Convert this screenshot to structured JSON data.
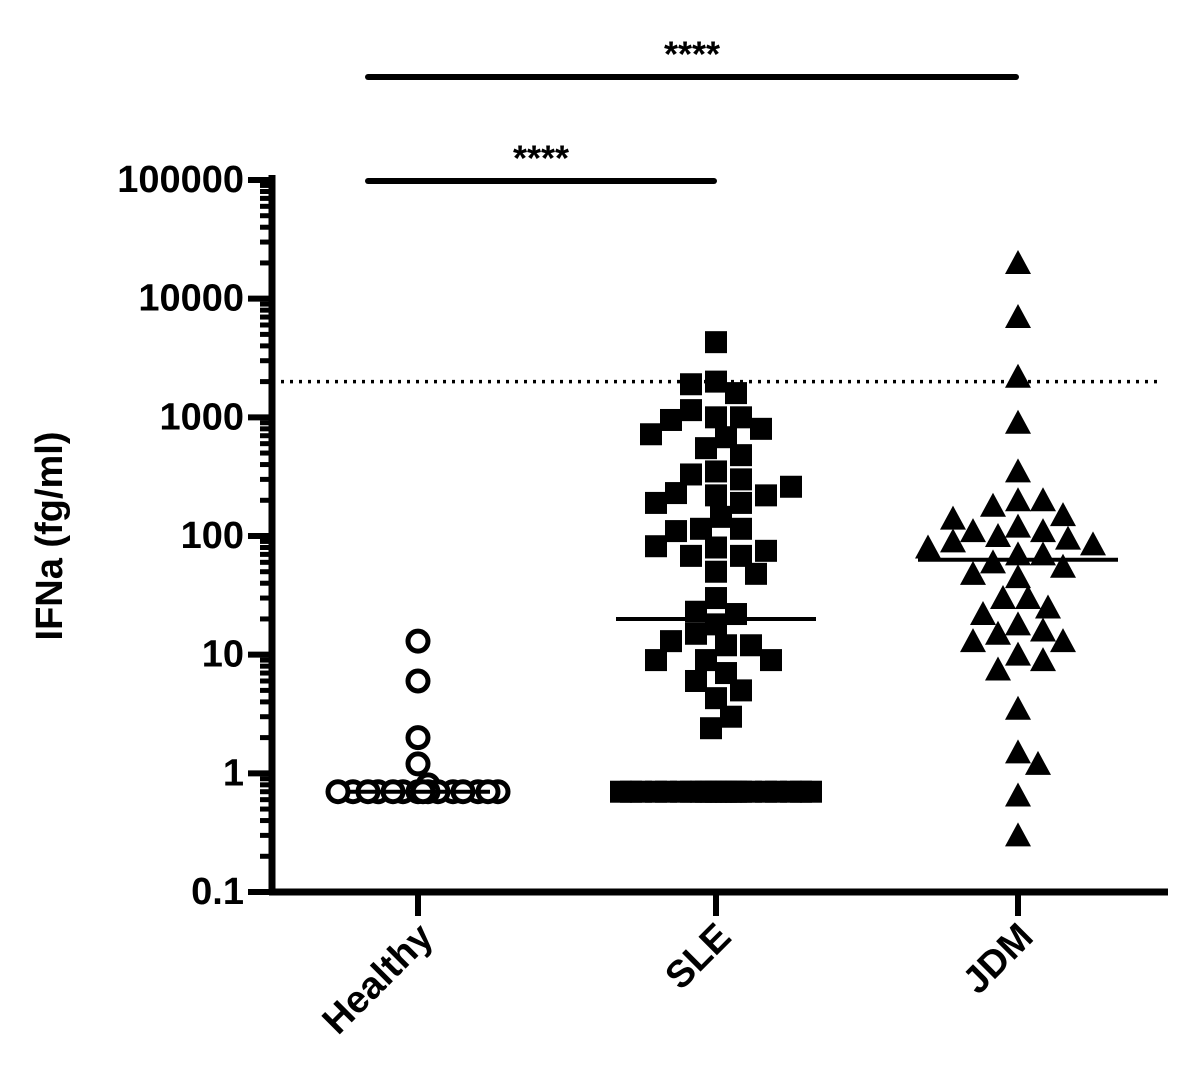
{
  "chart_data": {
    "type": "dotplot",
    "y_label": "IFNa (fg/ml)",
    "log_scale": true,
    "ylim": [
      0.1,
      100000
    ],
    "yticks": [
      0.1,
      1,
      10,
      100,
      1000,
      10000,
      100000
    ],
    "color": "#000000",
    "threshold": 2000,
    "categories": [
      "Healthy",
      "SLE",
      "JDM"
    ],
    "groups": [
      {
        "marker": "circle",
        "median": 0.7,
        "values": [
          1.2,
          13,
          6,
          2,
          0.8,
          0.7,
          0.7,
          0.7,
          0.7,
          0.7,
          0.7,
          0.7,
          0.7,
          0.7,
          0.7,
          0.7,
          0.7,
          0.7,
          0.7,
          0.7
        ]
      },
      {
        "marker": "square",
        "median": 20,
        "values": [
          4300,
          2000,
          1600,
          1900,
          1000,
          1000,
          1150,
          950,
          800,
          680,
          550,
          720,
          480,
          350,
          300,
          330,
          220,
          190,
          230,
          220,
          190,
          260,
          145,
          115,
          115,
          110,
          80,
          68,
          68,
          75,
          82,
          50,
          48,
          30,
          22,
          23,
          18,
          15,
          12,
          12,
          13,
          9,
          9,
          9,
          7,
          6,
          5,
          4.3,
          3,
          2.4,
          0.7,
          0.7,
          0.7,
          0.7,
          0.7,
          0.7,
          0.7,
          0.7,
          0.7,
          0.7,
          0.7,
          0.7,
          0.7,
          0.7,
          0.7,
          0.7,
          0.7,
          0.7,
          0.7,
          0.7,
          0.7,
          0.7
        ]
      },
      {
        "marker": "triangle",
        "median": 63,
        "values": [
          20000,
          7000,
          2200,
          900,
          350,
          200,
          200,
          180,
          150,
          120,
          110,
          100,
          110,
          140,
          95,
          90,
          85,
          70,
          70,
          60,
          55,
          48,
          45,
          80,
          30,
          30,
          25,
          22,
          18,
          16,
          15,
          13,
          13,
          10,
          9,
          7.5,
          3.5,
          1.5,
          1.2,
          0.65,
          0.3
        ]
      }
    ],
    "annotations": [
      {
        "text": "****"
      },
      {
        "text": "****"
      }
    ]
  }
}
